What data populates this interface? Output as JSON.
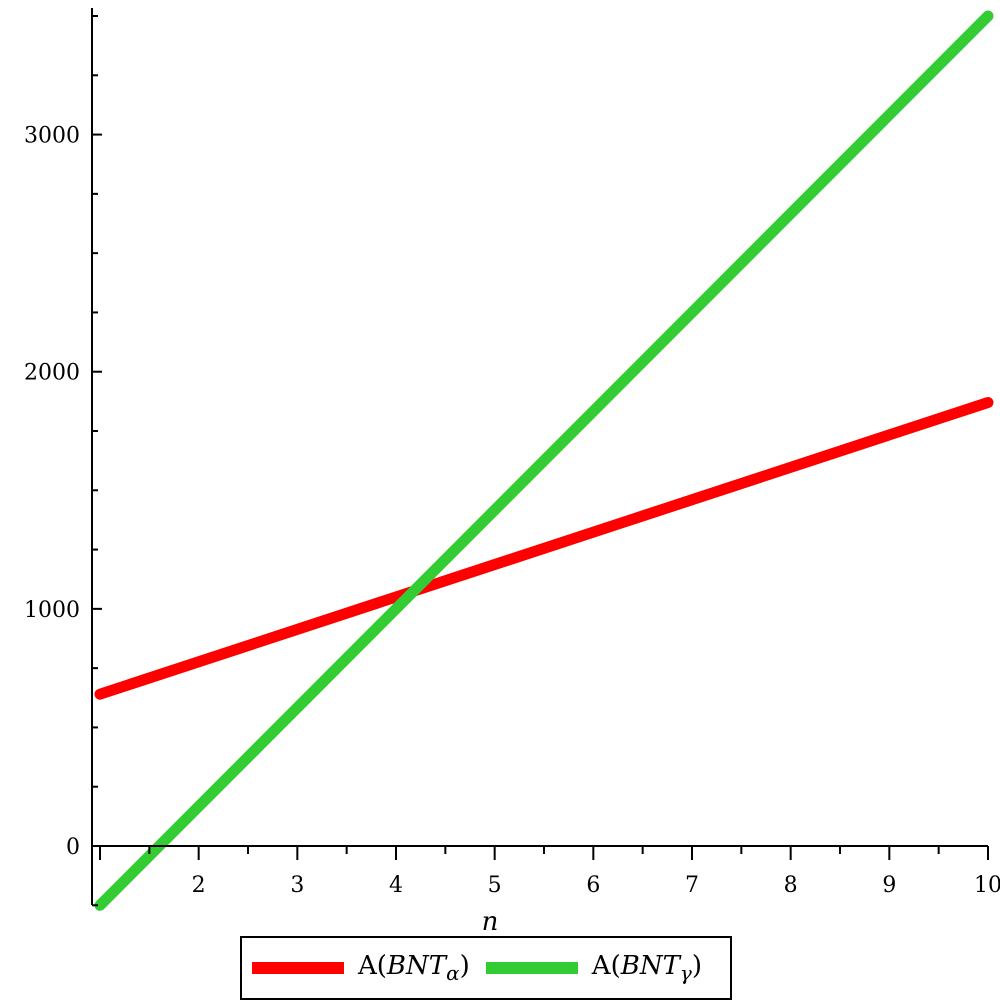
{
  "chart_data": {
    "type": "line",
    "title": "",
    "xlabel": "n",
    "ylabel": "",
    "xlim": [
      1,
      10
    ],
    "ylim": [
      -250,
      3550
    ],
    "x_ticks": [
      2,
      3,
      4,
      5,
      6,
      7,
      8,
      9,
      10
    ],
    "y_ticks": [
      0,
      1000,
      2000,
      3000
    ],
    "series": [
      {
        "name": "A(BNTα)",
        "label_main": "A(",
        "label_italic": "BNT",
        "label_sub": "α",
        "label_close": ")",
        "color": "#ff0000",
        "x": [
          1,
          10
        ],
        "y": [
          640,
          1870
        ]
      },
      {
        "name": "A(BNTγ)",
        "label_main": "A(",
        "label_italic": "BNT",
        "label_sub": "γ",
        "label_close": ")",
        "color": "#33cc33",
        "x": [
          1,
          10
        ],
        "y": [
          -250,
          3500
        ]
      }
    ],
    "legend_position": "bottom"
  }
}
